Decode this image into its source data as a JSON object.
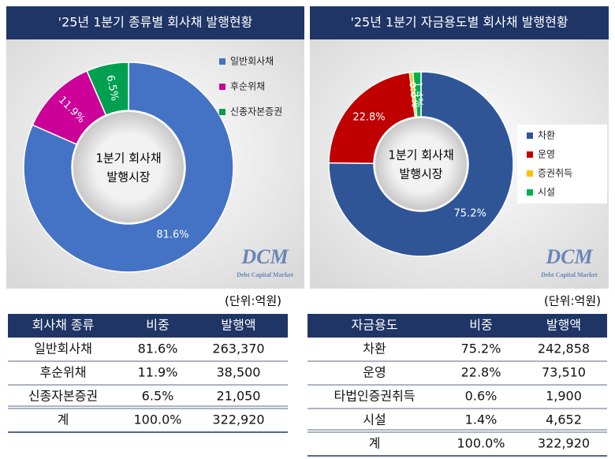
{
  "chart_data": [
    {
      "type": "pie",
      "title": "'25년 1분기 종류별 회사채 발행현황",
      "center_label": [
        "1분기 회사채",
        "발행시장"
      ],
      "categories": [
        "일반회사채",
        "후순위채",
        "신종자본증권"
      ],
      "values": [
        81.6,
        11.9,
        6.5
      ],
      "value_labels": [
        "81.6%",
        "11.9%",
        "6.5%"
      ],
      "colors": [
        "#4472c4",
        "#cc0099",
        "#00a050"
      ],
      "watermark": [
        "DCM",
        "Debt Capital Market"
      ]
    },
    {
      "type": "pie",
      "title": "'25년 1분기 자금용도별 회사채 발행현황",
      "center_label": [
        "1분기 회사채",
        "발행시장"
      ],
      "categories": [
        "차환",
        "운영",
        "증권취득",
        "시설"
      ],
      "values": [
        75.2,
        22.8,
        0.6,
        1.4
      ],
      "value_labels": [
        "75.2%",
        "22.8%",
        "0.6%",
        "1.4%"
      ],
      "colors": [
        "#2f5597",
        "#c00000",
        "#ffc000",
        "#00b050"
      ],
      "watermark": [
        "DCM",
        "Debt Capital Market"
      ]
    }
  ],
  "tables": [
    {
      "unit": "(단위:억원)",
      "columns": [
        "회사채 종류",
        "비중",
        "발행액"
      ],
      "rows": [
        [
          "일반회사채",
          "81.6%",
          "263,370"
        ],
        [
          "후순위채",
          "11.9%",
          "38,500"
        ],
        [
          "신종자본증권",
          "6.5%",
          "21,050"
        ],
        [
          "계",
          "100.0%",
          "322,920"
        ]
      ]
    },
    {
      "unit": "(단위:억원)",
      "columns": [
        "자금용도",
        "비중",
        "발행액"
      ],
      "rows": [
        [
          "차환",
          "75.2%",
          "242,858"
        ],
        [
          "운영",
          "22.8%",
          "73,510"
        ],
        [
          "타법인증권취득",
          "0.6%",
          "1,900"
        ],
        [
          "시설",
          "1.4%",
          "4,652"
        ],
        [
          "계",
          "100.0%",
          "322,920"
        ]
      ]
    }
  ]
}
